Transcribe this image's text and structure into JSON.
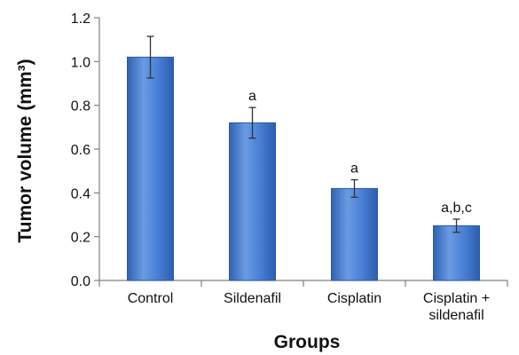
{
  "chart_data": {
    "type": "bar",
    "title": "",
    "xlabel": "Groups",
    "ylabel": "Tumor volume (mm³)",
    "ylim": [
      0,
      1.2
    ],
    "yticks": [
      "0.0",
      "0.2",
      "0.4",
      "0.6",
      "0.8",
      "1.0",
      "1.2"
    ],
    "categories": [
      [
        "Control"
      ],
      [
        "Sildenafil"
      ],
      [
        "Cisplatin"
      ],
      [
        "Cisplatin +",
        "sildenafil"
      ]
    ],
    "values": [
      1.02,
      0.72,
      0.42,
      0.25
    ],
    "error": [
      0.095,
      0.07,
      0.04,
      0.03
    ],
    "annotations": [
      "",
      "a",
      "a",
      "a,b,c"
    ],
    "grid": false,
    "legend": "none",
    "colors": {
      "bar_top": "#6fa0e6",
      "bar_mid": "#3f77cf",
      "bar_edge": "#2a5aa8",
      "axis": "#808080",
      "error_bar": "#333333"
    }
  }
}
